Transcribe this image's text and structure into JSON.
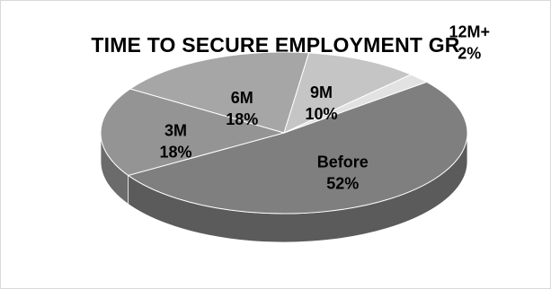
{
  "chart_data": {
    "type": "pie",
    "title": "TIME TO SECURE EMPLOYMENT GR",
    "categories": [
      "Before",
      "3M",
      "6M",
      "9M",
      "12M+"
    ],
    "values": [
      52,
      18,
      18,
      10,
      2
    ],
    "labels": [
      "52%",
      "18%",
      "18%",
      "10%",
      "2%"
    ],
    "colors": [
      "#7f7f7f",
      "#949494",
      "#a6a6a6",
      "#c5c5c5",
      "#e2e2e2"
    ],
    "style": "3d-tilted"
  }
}
